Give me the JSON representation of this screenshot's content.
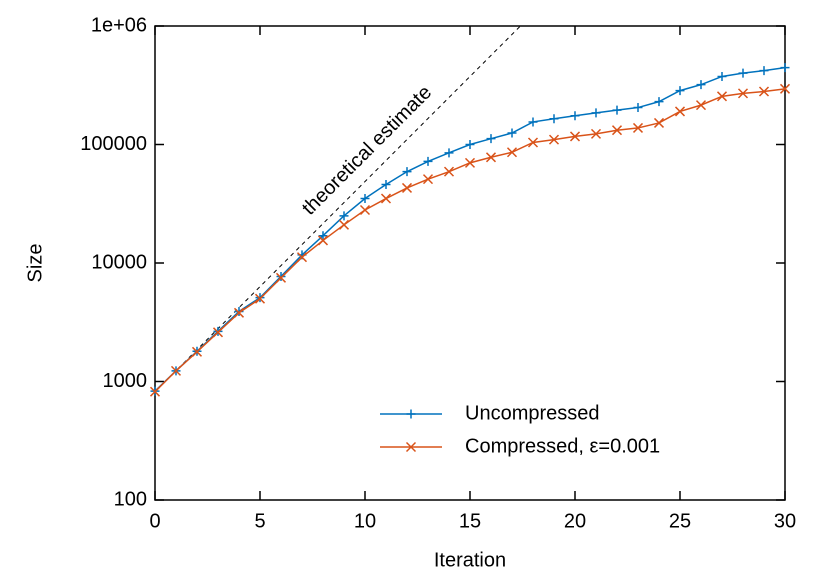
{
  "chart_data": {
    "type": "line",
    "xlabel": "Iteration",
    "ylabel": "Size",
    "x": [
      0,
      1,
      2,
      3,
      4,
      5,
      6,
      7,
      8,
      9,
      10,
      11,
      12,
      13,
      14,
      15,
      16,
      17,
      18,
      19,
      20,
      21,
      22,
      23,
      24,
      25,
      26,
      27,
      28,
      29,
      30
    ],
    "series": [
      {
        "name": "Uncompressed",
        "color": "#0072bd",
        "marker": "plus",
        "values": [
          830,
          1230,
          1800,
          2650,
          3900,
          5100,
          7700,
          11700,
          17000,
          25000,
          35000,
          46000,
          59000,
          72000,
          85000,
          100000,
          112000,
          125000,
          155000,
          165000,
          175000,
          185000,
          195000,
          205000,
          230000,
          285000,
          320000,
          375000,
          400000,
          420000,
          445000
        ]
      },
      {
        "name": "Compressed, ε=0.001",
        "color": "#d95319",
        "marker": "cross",
        "values": [
          820,
          1230,
          1780,
          2600,
          3800,
          5000,
          7500,
          11200,
          15500,
          21000,
          28000,
          35000,
          43000,
          51000,
          59000,
          70000,
          78000,
          86000,
          104000,
          110000,
          117000,
          123000,
          132000,
          138000,
          152000,
          190000,
          215000,
          255000,
          270000,
          280000,
          295000
        ]
      }
    ],
    "reference": {
      "x": [
        0,
        17.4
      ],
      "values": [
        820,
        1000000
      ],
      "color": "#000000",
      "dashed": true
    },
    "annotations": [
      "theoretical estimate"
    ],
    "xlim": [
      0,
      30
    ],
    "xticks": [
      0,
      5,
      10,
      15,
      20,
      25,
      30
    ],
    "ylim": [
      100,
      1000000
    ],
    "log_y": true,
    "yticks": [
      100,
      1000,
      10000,
      100000,
      {
        "value": 1000000,
        "label": "1e+06"
      }
    ],
    "grid": false,
    "legend": "bottom right"
  }
}
